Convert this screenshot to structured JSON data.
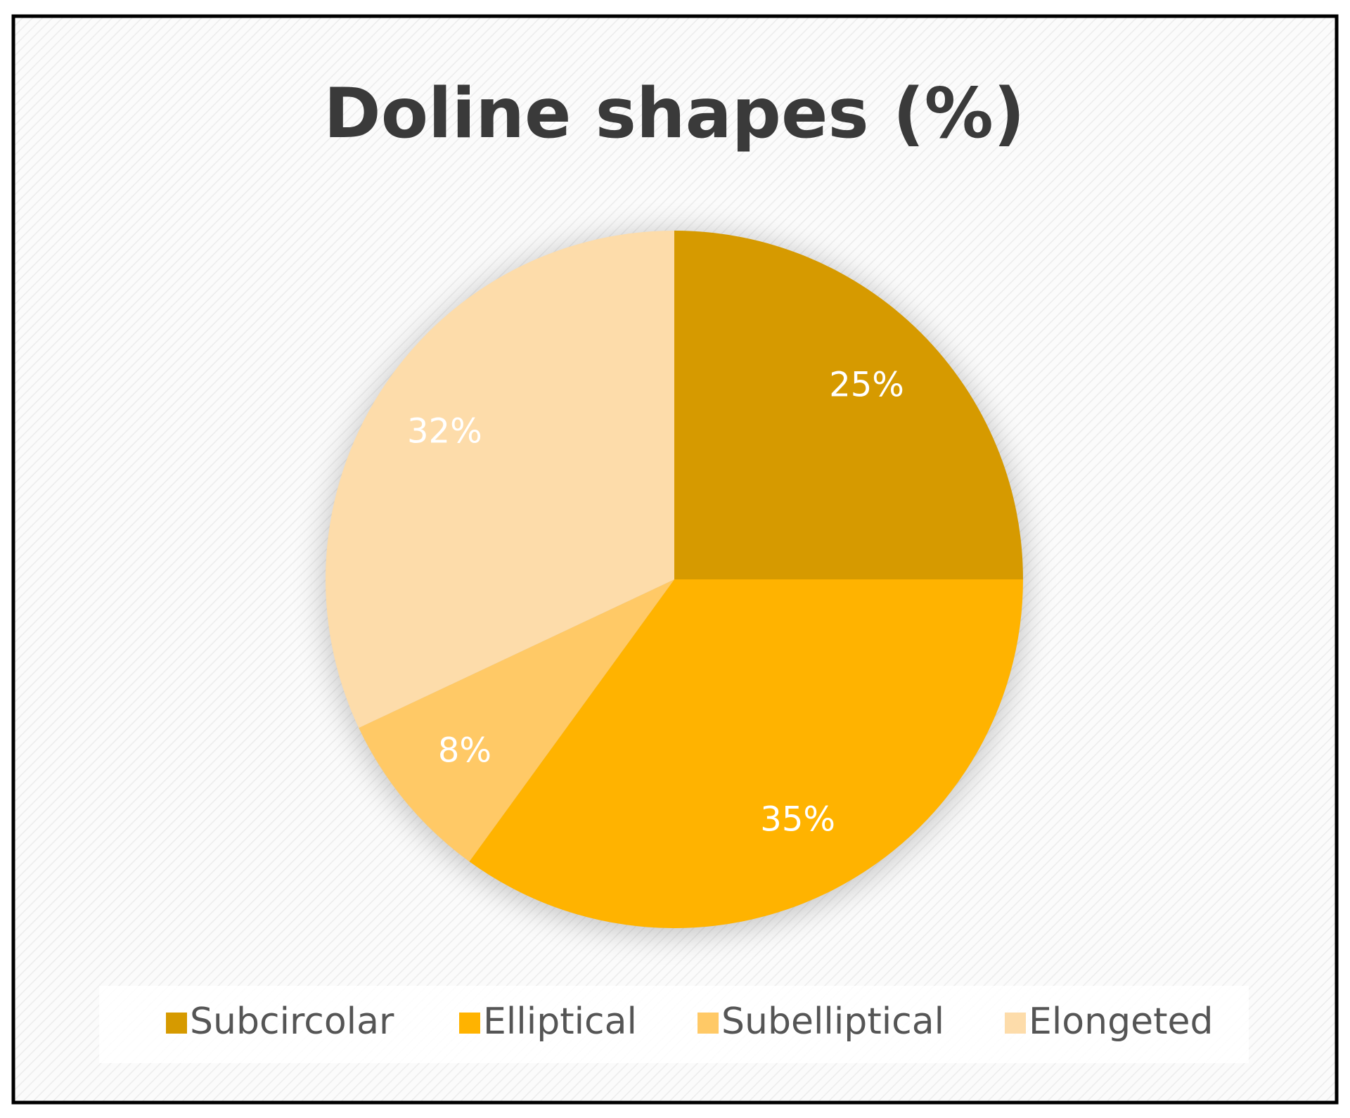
{
  "chart_data": {
    "type": "pie",
    "title": "Doline shapes (%)",
    "categories": [
      "Subcircolar",
      "Elliptical",
      "Subelliptical",
      "Elongeted"
    ],
    "values": [
      25,
      35,
      8,
      32
    ],
    "value_labels": [
      "25%",
      "35%",
      "8%",
      "32%"
    ],
    "colors": [
      "#d69a00",
      "#ffb300",
      "#ffc966",
      "#fddcaa"
    ],
    "legend": "bottom"
  }
}
